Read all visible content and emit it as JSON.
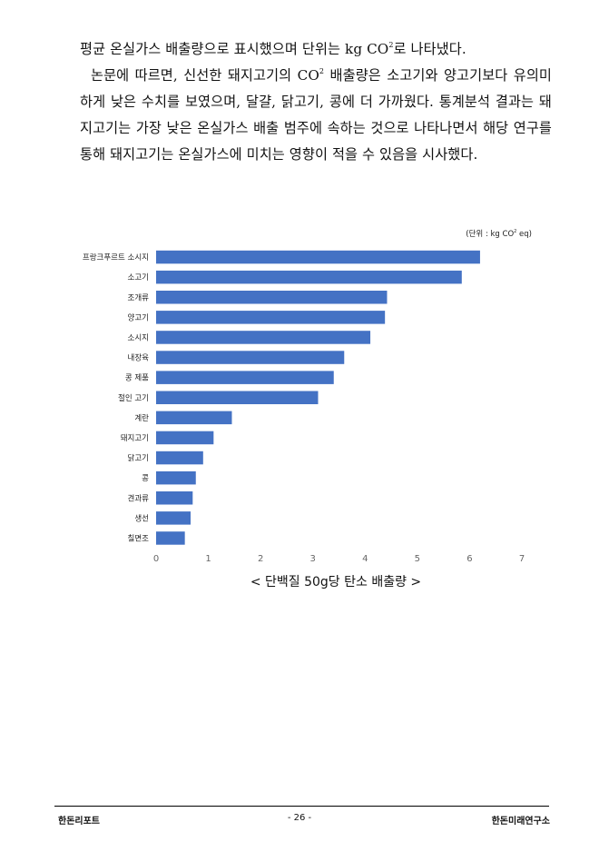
{
  "paragraphs": {
    "p1": {
      "before": "평균 온실가스 배출량으로 표시했으며 단위는 kg CO",
      "sup": "2",
      "after": "로 나타냈다."
    },
    "p2": {
      "before": "논문에 따르면, 신선한 돼지고기의 CO",
      "sup": "2",
      "after": " 배출량은 소고기와 양고기보다 유의미하게 낮은 수치를 보였으며, 달걀, 닭고기, 콩에 더 가까웠다. 통계분석 결과는 돼지고기는 가장 낮은 온실가스 배출 범주에 속하는 것으로 나타나면서 해당 연구를 통해 돼지고기는 온실가스에 미치는 영향이 적을 수 있음을 시사했다."
    }
  },
  "unit_note": {
    "before": "(단위 : kg CO",
    "sup": "2",
    "after": " eq)"
  },
  "chart_data": {
    "type": "bar",
    "orientation": "horizontal",
    "categories": [
      "프랑크푸르트 소시지",
      "소고기",
      "조개류",
      "양고기",
      "소시지",
      "내장육",
      "콩 제품",
      "절인 고기",
      "계란",
      "돼지고기",
      "닭고기",
      "콩",
      "견과류",
      "생선",
      "칠면조"
    ],
    "values": [
      6.2,
      5.85,
      4.42,
      4.38,
      4.1,
      3.6,
      3.4,
      3.1,
      1.45,
      1.1,
      0.9,
      0.76,
      0.7,
      0.66,
      0.55
    ],
    "xlim": [
      0,
      7
    ],
    "xticks": [
      "0",
      "1",
      "2",
      "3",
      "4",
      "5",
      "6",
      "7"
    ],
    "bar_color": "#4472c4",
    "caption": "< 단백질 50g당 탄소 배출량 >"
  },
  "footer": {
    "left": "한돈리포트",
    "center": "- 26 -",
    "right": "한돈미래연구소"
  }
}
